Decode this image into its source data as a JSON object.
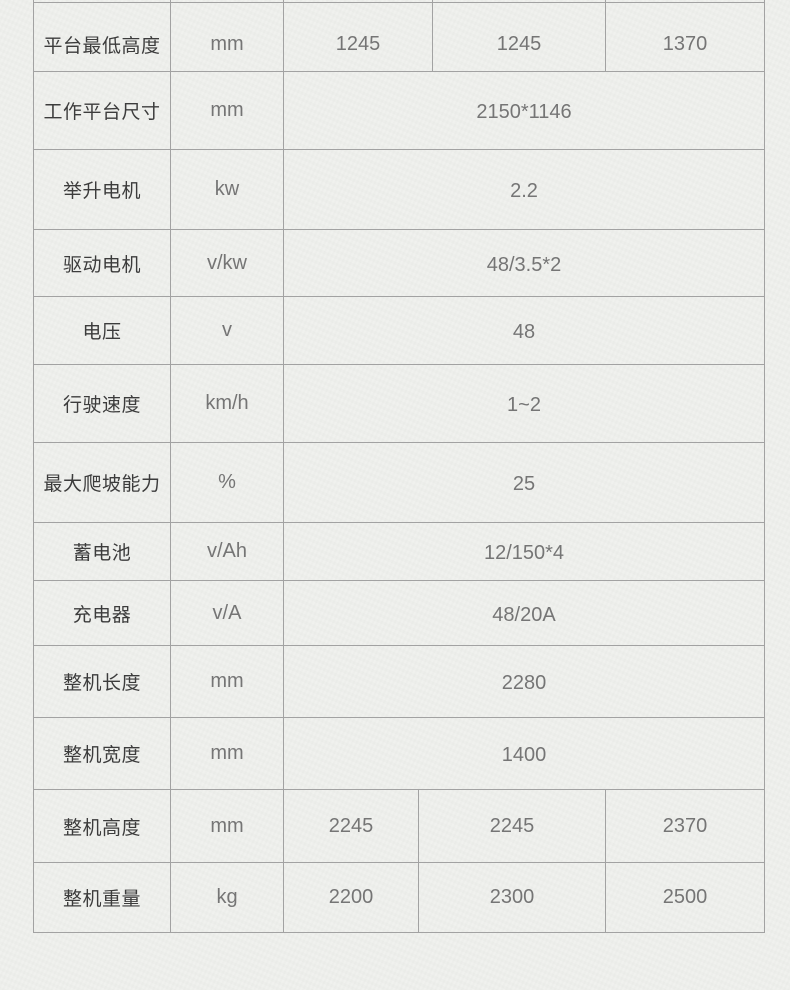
{
  "colors": {
    "background": "#f0f1ee",
    "border": "#a2a2a2",
    "label_text": "#3c3c3c",
    "value_text": "#757575"
  },
  "table": {
    "rows": [
      {
        "label": "平台最低高度",
        "unit": "mm",
        "values": [
          "1245",
          "1245",
          "1370"
        ]
      },
      {
        "label": "工作平台尺寸",
        "unit": "mm",
        "values": [
          "2150*1146"
        ]
      },
      {
        "label": "举升电机",
        "unit": "kw",
        "values": [
          "2.2"
        ]
      },
      {
        "label": "驱动电机",
        "unit": "v/kw",
        "values": [
          "48/3.5*2"
        ]
      },
      {
        "label": "电压",
        "unit": "v",
        "values": [
          "48"
        ]
      },
      {
        "label": "行驶速度",
        "unit": "km/h",
        "values": [
          "1~2"
        ]
      },
      {
        "label": "最大爬坡能力",
        "unit": "%",
        "values": [
          "25"
        ]
      },
      {
        "label": "蓄电池",
        "unit": "v/Ah",
        "values": [
          "12/150*4"
        ]
      },
      {
        "label": "充电器",
        "unit": "v/A",
        "values": [
          "48/20A"
        ]
      },
      {
        "label": "整机长度",
        "unit": "mm",
        "values": [
          "2280"
        ]
      },
      {
        "label": "整机宽度",
        "unit": "mm",
        "values": [
          "1400"
        ]
      },
      {
        "label": "整机高度",
        "unit": "mm",
        "values": [
          "2245",
          "2245",
          "2370"
        ]
      },
      {
        "label": "整机重量",
        "unit": "kg",
        "values": [
          "2200",
          "2300",
          "2500"
        ]
      }
    ]
  }
}
